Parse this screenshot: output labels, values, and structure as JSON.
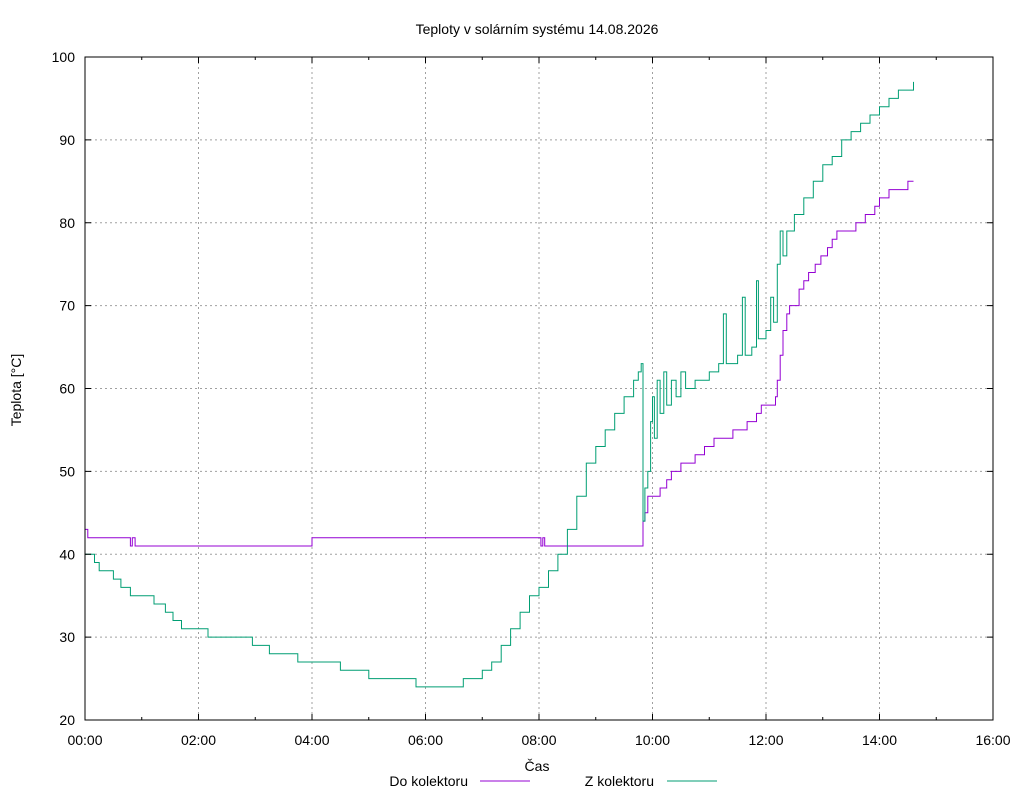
{
  "chart_data": {
    "type": "line",
    "title": "Teploty v solárním systému 14.08.2026",
    "xlabel": "Čas",
    "ylabel": "Teplota [°C]",
    "xlim": [
      "00:00",
      "16:00"
    ],
    "ylim": [
      20,
      100
    ],
    "x_ticks": [
      "00:00",
      "02:00",
      "04:00",
      "06:00",
      "08:00",
      "10:00",
      "12:00",
      "14:00",
      "16:00"
    ],
    "y_ticks": [
      20,
      30,
      40,
      50,
      60,
      70,
      80,
      90,
      100
    ],
    "grid": true,
    "legend": "bottom-center",
    "series": [
      {
        "name": "Do kolektoru",
        "color": "#9400d3",
        "points": [
          [
            "00:00",
            43
          ],
          [
            "00:03",
            42
          ],
          [
            "00:45",
            42
          ],
          [
            "00:48",
            41
          ],
          [
            "00:50",
            42
          ],
          [
            "00:53",
            41
          ],
          [
            "03:58",
            41
          ],
          [
            "04:00",
            42
          ],
          [
            "08:00",
            42
          ],
          [
            "08:02",
            41
          ],
          [
            "08:04",
            42
          ],
          [
            "08:06",
            41
          ],
          [
            "09:48",
            41
          ],
          [
            "09:50",
            44
          ],
          [
            "09:52",
            45
          ],
          [
            "09:55",
            47
          ],
          [
            "10:05",
            47
          ],
          [
            "10:08",
            48
          ],
          [
            "10:15",
            49
          ],
          [
            "10:20",
            50
          ],
          [
            "10:30",
            51
          ],
          [
            "10:45",
            52
          ],
          [
            "10:55",
            53
          ],
          [
            "11:05",
            54
          ],
          [
            "11:25",
            55
          ],
          [
            "11:40",
            56
          ],
          [
            "11:50",
            57
          ],
          [
            "11:55",
            58
          ],
          [
            "12:10",
            59
          ],
          [
            "12:12",
            61
          ],
          [
            "12:15",
            64
          ],
          [
            "12:18",
            67
          ],
          [
            "12:22",
            69
          ],
          [
            "12:25",
            70
          ],
          [
            "12:35",
            72
          ],
          [
            "12:40",
            73
          ],
          [
            "12:45",
            74
          ],
          [
            "12:52",
            75
          ],
          [
            "12:58",
            76
          ],
          [
            "13:05",
            77
          ],
          [
            "13:10",
            78
          ],
          [
            "13:15",
            79
          ],
          [
            "13:35",
            80
          ],
          [
            "13:45",
            81
          ],
          [
            "13:55",
            82
          ],
          [
            "14:00",
            83
          ],
          [
            "14:10",
            84
          ],
          [
            "14:30",
            85
          ],
          [
            "14:36",
            85
          ]
        ]
      },
      {
        "name": "Z kolektoru",
        "color": "#009e73",
        "points": [
          [
            "00:00",
            40
          ],
          [
            "00:10",
            39
          ],
          [
            "00:15",
            38
          ],
          [
            "00:30",
            37
          ],
          [
            "00:38",
            36
          ],
          [
            "00:48",
            35
          ],
          [
            "01:13",
            34
          ],
          [
            "01:25",
            33
          ],
          [
            "01:33",
            32
          ],
          [
            "01:42",
            31
          ],
          [
            "02:00",
            31
          ],
          [
            "02:10",
            30
          ],
          [
            "02:57",
            29
          ],
          [
            "03:15",
            28
          ],
          [
            "03:45",
            27
          ],
          [
            "04:00",
            27
          ],
          [
            "04:30",
            26
          ],
          [
            "05:00",
            25
          ],
          [
            "05:50",
            24
          ],
          [
            "06:40",
            25
          ],
          [
            "07:00",
            26
          ],
          [
            "07:10",
            27
          ],
          [
            "07:20",
            29
          ],
          [
            "07:30",
            31
          ],
          [
            "07:40",
            33
          ],
          [
            "07:50",
            35
          ],
          [
            "08:00",
            36
          ],
          [
            "08:10",
            38
          ],
          [
            "08:20",
            40
          ],
          [
            "08:30",
            43
          ],
          [
            "08:40",
            47
          ],
          [
            "08:50",
            51
          ],
          [
            "09:00",
            53
          ],
          [
            "09:10",
            55
          ],
          [
            "09:20",
            57
          ],
          [
            "09:30",
            59
          ],
          [
            "09:40",
            61
          ],
          [
            "09:45",
            62
          ],
          [
            "09:48",
            63
          ],
          [
            "09:50",
            44
          ],
          [
            "09:52",
            48
          ],
          [
            "09:55",
            50
          ],
          [
            "09:58",
            56
          ],
          [
            "10:00",
            59
          ],
          [
            "10:02",
            54
          ],
          [
            "10:05",
            61
          ],
          [
            "10:08",
            57
          ],
          [
            "10:12",
            62
          ],
          [
            "10:15",
            58
          ],
          [
            "10:20",
            61
          ],
          [
            "10:25",
            59
          ],
          [
            "10:30",
            62
          ],
          [
            "10:35",
            60
          ],
          [
            "10:45",
            61
          ],
          [
            "11:00",
            62
          ],
          [
            "11:10",
            63
          ],
          [
            "11:15",
            69
          ],
          [
            "11:18",
            63
          ],
          [
            "11:30",
            64
          ],
          [
            "11:35",
            71
          ],
          [
            "11:38",
            64
          ],
          [
            "11:45",
            65
          ],
          [
            "11:50",
            73
          ],
          [
            "11:52",
            66
          ],
          [
            "12:00",
            67
          ],
          [
            "12:05",
            71
          ],
          [
            "12:08",
            68
          ],
          [
            "12:12",
            75
          ],
          [
            "12:15",
            79
          ],
          [
            "12:18",
            76
          ],
          [
            "12:22",
            79
          ],
          [
            "12:30",
            81
          ],
          [
            "12:40",
            83
          ],
          [
            "12:50",
            85
          ],
          [
            "13:00",
            87
          ],
          [
            "13:10",
            88
          ],
          [
            "13:20",
            90
          ],
          [
            "13:30",
            91
          ],
          [
            "13:40",
            92
          ],
          [
            "13:50",
            93
          ],
          [
            "14:00",
            94
          ],
          [
            "14:10",
            95
          ],
          [
            "14:20",
            96
          ],
          [
            "14:30",
            96
          ],
          [
            "14:36",
            97
          ]
        ]
      }
    ]
  }
}
